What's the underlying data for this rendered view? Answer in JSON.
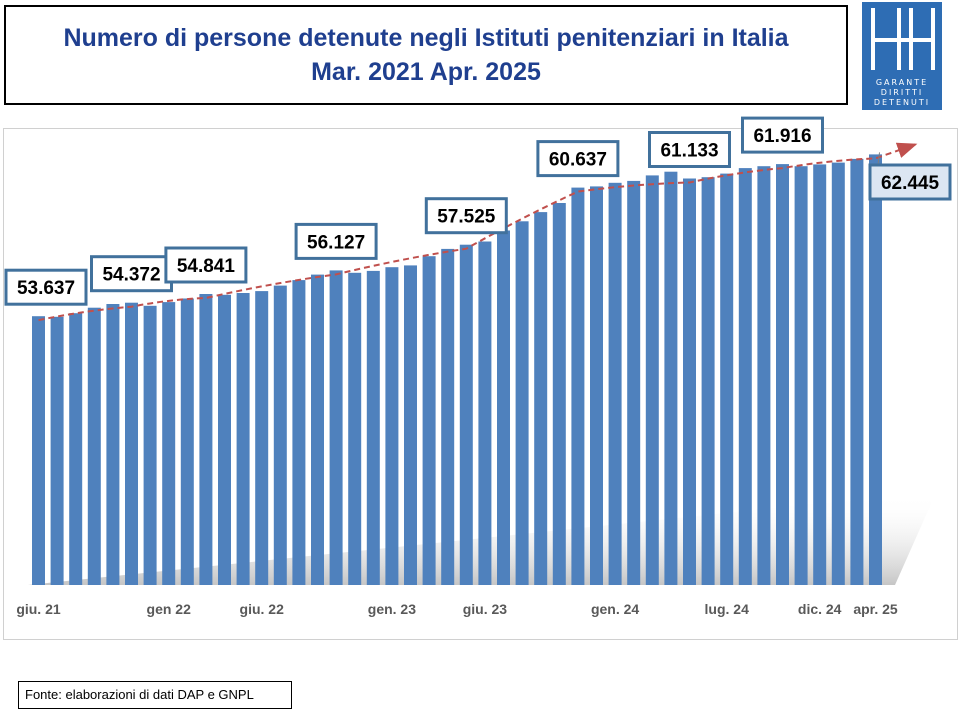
{
  "header": {
    "title_line1": "Numero di persone detenute negli Istituti penitenziari in Italia",
    "title_line2": "Mar. 2021 Apr. 2025"
  },
  "logo": {
    "line1": "GARANTE",
    "line2": "DIRITTI",
    "line3": "DETENUTI",
    "bg_color": "#2e6db4"
  },
  "footer": {
    "source": "Fonte: elaborazioni di dati DAP e GNPL"
  },
  "chart_data": {
    "type": "bar",
    "title": "Numero di persone detenute negli Istituti penitenziari in Italia",
    "subtitle": "Mar. 2021 Apr. 2025",
    "xlabel": "",
    "ylabel": "",
    "bar_color": "#4f81bd",
    "trend_color": "#c0504d",
    "grid": false,
    "y_axis_visible": false,
    "ylim": [
      39000,
      63500
    ],
    "values": [
      53637,
      53600,
      53800,
      54100,
      54300,
      54372,
      54200,
      54400,
      54600,
      54841,
      54800,
      54900,
      55000,
      55300,
      55600,
      55900,
      56127,
      56000,
      56100,
      56300,
      56400,
      56900,
      57300,
      57525,
      57700,
      58300,
      58800,
      59300,
      59800,
      60637,
      60700,
      60900,
      61000,
      61300,
      61500,
      61133,
      61200,
      61400,
      61700,
      61800,
      61916,
      61800,
      61900,
      62000,
      62200,
      62445
    ],
    "x_tick_labels": [
      {
        "index": 0,
        "label": "giu. 21"
      },
      {
        "index": 7,
        "label": "gen 22"
      },
      {
        "index": 12,
        "label": "giu. 22"
      },
      {
        "index": 19,
        "label": "gen. 23"
      },
      {
        "index": 24,
        "label": "giu. 23"
      },
      {
        "index": 31,
        "label": "gen. 24"
      },
      {
        "index": 37,
        "label": "lug. 24"
      },
      {
        "index": 42,
        "label": "dic. 24"
      },
      {
        "index": 45,
        "label": "apr. 25"
      }
    ],
    "data_labels": [
      {
        "index": 0,
        "text": "53.637"
      },
      {
        "index": 5,
        "text": "54.372"
      },
      {
        "index": 9,
        "text": "54.841"
      },
      {
        "index": 16,
        "text": "56.127"
      },
      {
        "index": 23,
        "text": "57.525"
      },
      {
        "index": 29,
        "text": "60.637"
      },
      {
        "index": 35,
        "text": "61.133"
      },
      {
        "index": 40,
        "text": "61.916"
      },
      {
        "index": 45,
        "text": "62.445"
      }
    ]
  }
}
